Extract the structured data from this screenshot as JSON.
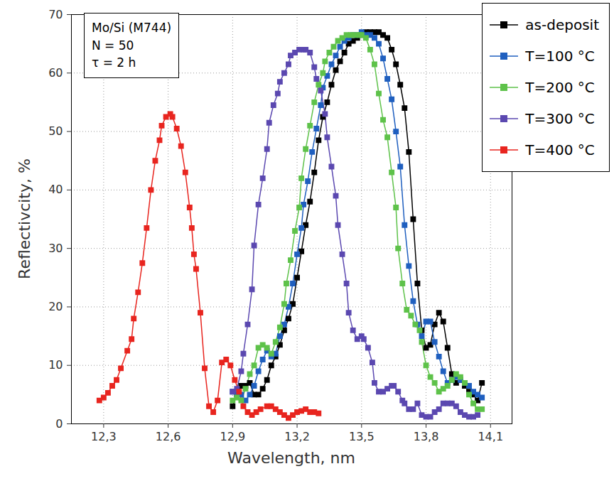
{
  "chart_data": {
    "type": "line",
    "x_label": "Wavelength, nm",
    "y_label": "Reflectivcity, %",
    "annotations": [
      "Mo/Si (M744)",
      "N = 50",
      "τ = 2 h"
    ],
    "xlim": [
      12.15,
      14.2
    ],
    "ylim": [
      0,
      70
    ],
    "xticks": [
      {
        "value": 12.3,
        "label": "12,3"
      },
      {
        "value": 12.6,
        "label": "12,6"
      },
      {
        "value": 12.9,
        "label": "12,9"
      },
      {
        "value": 13.2,
        "label": "13,2"
      },
      {
        "value": 13.5,
        "label": "13,5"
      },
      {
        "value": 13.8,
        "label": "13,8"
      },
      {
        "value": 14.1,
        "label": "14,1"
      }
    ],
    "yticks": [
      0,
      10,
      20,
      30,
      40,
      50,
      60,
      70
    ],
    "grid": true,
    "legend": "top-right",
    "marker": "square",
    "line_style": "solid",
    "series": [
      {
        "name": "as-deposit",
        "color": "#000000",
        "x": [
          12.9,
          12.92,
          12.94,
          12.96,
          12.98,
          13.0,
          13.02,
          13.04,
          13.06,
          13.08,
          13.1,
          13.12,
          13.14,
          13.16,
          13.18,
          13.2,
          13.22,
          13.24,
          13.26,
          13.28,
          13.3,
          13.32,
          13.34,
          13.36,
          13.38,
          13.4,
          13.42,
          13.44,
          13.46,
          13.48,
          13.5,
          13.52,
          13.54,
          13.56,
          13.58,
          13.6,
          13.62,
          13.64,
          13.66,
          13.68,
          13.7,
          13.72,
          13.74,
          13.76,
          13.78,
          13.8,
          13.82,
          13.84,
          13.86,
          13.88,
          13.9,
          13.92,
          13.94,
          13.96,
          13.98,
          14.0,
          14.02,
          14.04,
          14.06
        ],
        "values": [
          3,
          5,
          6.5,
          6.5,
          7,
          5,
          5,
          6,
          7.5,
          10,
          11.5,
          13.5,
          16,
          18,
          20.5,
          25,
          29.5,
          34,
          38,
          43,
          48.5,
          52.5,
          55,
          58,
          60.5,
          62,
          63.5,
          65,
          65.5,
          66,
          66.5,
          67,
          67,
          67,
          67,
          66.5,
          66,
          64,
          61.5,
          58,
          54,
          46.5,
          35,
          24,
          16,
          13,
          13.5,
          17,
          19,
          17.5,
          13,
          8.5,
          7,
          7.5,
          6.5,
          5.5,
          5,
          4,
          7
        ]
      },
      {
        "name": "T=100 °C",
        "color": "#1f5fbf",
        "x": [
          12.9,
          12.92,
          12.94,
          12.96,
          12.98,
          13.0,
          13.02,
          13.04,
          13.06,
          13.08,
          13.1,
          13.12,
          13.14,
          13.16,
          13.18,
          13.2,
          13.22,
          13.23,
          13.25,
          13.27,
          13.29,
          13.31,
          13.32,
          13.34,
          13.36,
          13.38,
          13.4,
          13.42,
          13.44,
          13.46,
          13.48,
          13.5,
          13.52,
          13.54,
          13.56,
          13.58,
          13.6,
          13.62,
          13.64,
          13.66,
          13.68,
          13.7,
          13.72,
          13.74,
          13.76,
          13.78,
          13.8,
          13.82,
          13.84,
          13.86,
          13.88,
          13.9,
          13.92,
          13.94,
          13.96,
          13.98,
          14.0,
          14.02,
          14.04,
          14.06
        ],
        "values": [
          5.5,
          5,
          5,
          4,
          5,
          6.5,
          9,
          11,
          12.5,
          11.5,
          12,
          15,
          17,
          20,
          24,
          29,
          33.5,
          37.5,
          41.5,
          46.5,
          50.5,
          54.5,
          57.5,
          59.5,
          61.5,
          63,
          64.5,
          65.5,
          66,
          66.5,
          66.5,
          67,
          66.5,
          66.5,
          66,
          65,
          62.5,
          59,
          55.5,
          50,
          44,
          34,
          27,
          21,
          17,
          15,
          17.5,
          17.5,
          14,
          11.5,
          9,
          7,
          7.5,
          8,
          7.5,
          7,
          6.5,
          5.5,
          5,
          4.5
        ]
      },
      {
        "name": "T=200 °C",
        "color": "#5ec24a",
        "x": [
          12.9,
          12.92,
          12.94,
          12.96,
          12.98,
          13.0,
          13.02,
          13.04,
          13.06,
          13.08,
          13.1,
          13.12,
          13.14,
          13.15,
          13.17,
          13.19,
          13.21,
          13.22,
          13.24,
          13.26,
          13.28,
          13.3,
          13.32,
          13.33,
          13.35,
          13.37,
          13.39,
          13.41,
          13.43,
          13.45,
          13.47,
          13.49,
          13.5,
          13.52,
          13.54,
          13.56,
          13.58,
          13.6,
          13.62,
          13.64,
          13.66,
          13.67,
          13.69,
          13.71,
          13.73,
          13.75,
          13.77,
          13.78,
          13.8,
          13.82,
          13.84,
          13.86,
          13.88,
          13.9,
          13.92,
          13.94,
          13.96,
          13.98,
          14.0,
          14.02,
          14.04,
          14.06
        ],
        "values": [
          4,
          4.5,
          4,
          6,
          8.5,
          10,
          13,
          13.5,
          13,
          12,
          14,
          16.5,
          20.5,
          24,
          28,
          33,
          37,
          42,
          47,
          51,
          55,
          58,
          60,
          62,
          63.5,
          64.5,
          65.5,
          66,
          66.5,
          66.5,
          66.5,
          66.5,
          66.5,
          66,
          64,
          61.5,
          56.5,
          52,
          49,
          43,
          37,
          30,
          24,
          19.5,
          18.5,
          17,
          16,
          14,
          10,
          8,
          7,
          5.5,
          6,
          6.5,
          7.5,
          8.5,
          8,
          7,
          5,
          3.5,
          2.5,
          2.5
        ]
      },
      {
        "name": "T=300 °C",
        "color": "#5b48b0",
        "x": [
          12.9,
          12.92,
          12.94,
          12.95,
          12.97,
          12.99,
          13.0,
          13.02,
          13.04,
          13.06,
          13.07,
          13.09,
          13.11,
          13.12,
          13.14,
          13.16,
          13.17,
          13.19,
          13.21,
          13.23,
          13.24,
          13.26,
          13.28,
          13.29,
          13.31,
          13.33,
          13.34,
          13.36,
          13.38,
          13.39,
          13.41,
          13.43,
          13.44,
          13.46,
          13.48,
          13.5,
          13.51,
          13.53,
          13.55,
          13.56,
          13.58,
          13.6,
          13.62,
          13.64,
          13.65,
          13.67,
          13.69,
          13.7,
          13.72,
          13.74,
          13.76,
          13.78,
          13.8,
          13.82,
          13.84,
          13.86,
          13.88,
          13.9,
          13.92,
          13.94,
          13.96,
          13.98,
          14.0,
          14.02,
          14.04
        ],
        "values": [
          5.5,
          6,
          9,
          12,
          17,
          23,
          30.5,
          37.5,
          42,
          47,
          51.5,
          54.5,
          56.5,
          58.5,
          60,
          61.5,
          63,
          63.5,
          64,
          64,
          64,
          63.5,
          61,
          59,
          57,
          53,
          49,
          44,
          39,
          34,
          29,
          24,
          19,
          16,
          14.5,
          15,
          14.5,
          13,
          10.5,
          7,
          5.5,
          5.5,
          6,
          6.5,
          6.5,
          5.5,
          4,
          3.5,
          2.5,
          2.5,
          3.5,
          1.5,
          1.2,
          1.2,
          2,
          2.5,
          3.5,
          3.5,
          3.5,
          3,
          2,
          1.5,
          1.2,
          1.2,
          1.5
        ]
      },
      {
        "name": "T=400 °C",
        "color": "#e8251f",
        "x": [
          12.28,
          12.3,
          12.32,
          12.34,
          12.36,
          12.38,
          12.41,
          12.43,
          12.44,
          12.46,
          12.48,
          12.5,
          12.52,
          12.54,
          12.56,
          12.57,
          12.59,
          12.61,
          12.62,
          12.64,
          12.66,
          12.68,
          12.7,
          12.71,
          12.72,
          12.73,
          12.75,
          12.77,
          12.79,
          12.81,
          12.83,
          12.85,
          12.87,
          12.89,
          12.91,
          12.93,
          12.95,
          12.97,
          12.99,
          13.01,
          13.03,
          13.06,
          13.08,
          13.1,
          13.12,
          13.14,
          13.16,
          13.18,
          13.2,
          13.22,
          13.24,
          13.26,
          13.28,
          13.3
        ],
        "values": [
          4,
          4.5,
          5.3,
          6.5,
          7.5,
          9.5,
          12.5,
          14.5,
          18,
          22.5,
          27.5,
          33.5,
          40,
          45,
          48.5,
          51,
          52.5,
          53,
          52.5,
          50.5,
          47.5,
          43,
          37,
          33.5,
          29,
          26.5,
          19,
          9.5,
          3,
          2,
          4,
          10.5,
          11,
          10,
          7.5,
          5.5,
          3,
          2,
          1.5,
          2,
          2.5,
          3,
          3,
          2.5,
          2,
          1.5,
          1,
          1.5,
          2,
          2.2,
          2.5,
          2,
          2,
          1.8
        ]
      }
    ]
  }
}
